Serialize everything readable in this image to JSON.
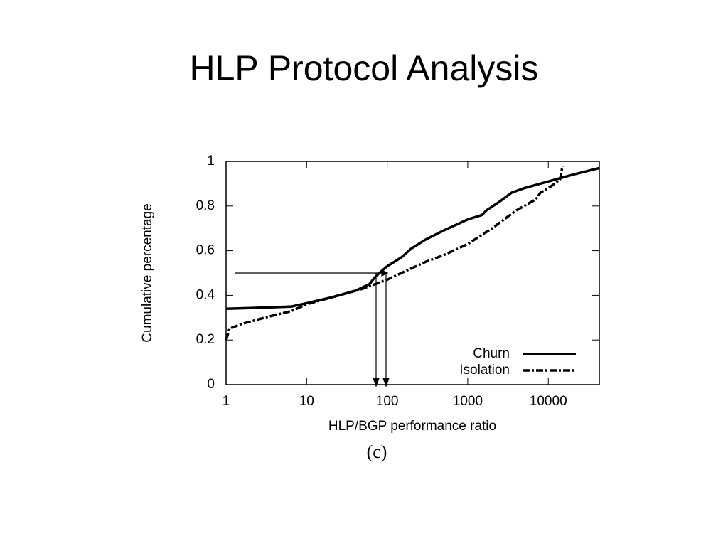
{
  "slide_title": "HLP Protocol Analysis",
  "chart_data": {
    "type": "line",
    "xlabel": "HLP/BGP performance ratio",
    "ylabel": "Cumulative percentage",
    "caption": "(c)",
    "xscale": "log",
    "xlim": [
      1,
      43000
    ],
    "xticks": [
      1,
      10,
      100,
      1000,
      10000
    ],
    "ylim": [
      0,
      1
    ],
    "yticks": [
      0,
      0.2,
      0.4,
      0.6,
      0.8,
      1
    ],
    "legend": "lower right",
    "series": [
      {
        "name": "Churn",
        "color": "#000000",
        "dash": "solid",
        "x": [
          1,
          2,
          6.5,
          10,
          20,
          40,
          60,
          70,
          80,
          100,
          150,
          200,
          300,
          500,
          1000,
          1500,
          1700,
          2500,
          3500,
          5000,
          10000,
          20000,
          43000
        ],
        "values": [
          0.34,
          0.343,
          0.35,
          0.365,
          0.39,
          0.42,
          0.45,
          0.48,
          0.5,
          0.53,
          0.57,
          0.61,
          0.65,
          0.69,
          0.74,
          0.76,
          0.78,
          0.82,
          0.86,
          0.88,
          0.91,
          0.94,
          0.97
        ]
      },
      {
        "name": "Isolation",
        "color": "#000000",
        "dash": "dashdot",
        "x": [
          1,
          1.1,
          1.5,
          3,
          6.5,
          10,
          20,
          50,
          100,
          150,
          300,
          500,
          1000,
          2000,
          4000,
          7000,
          8000,
          10000,
          12000,
          14000,
          15000
        ],
        "values": [
          0.2,
          0.25,
          0.27,
          0.3,
          0.33,
          0.36,
          0.39,
          0.43,
          0.47,
          0.5,
          0.55,
          0.58,
          0.63,
          0.7,
          0.78,
          0.83,
          0.86,
          0.88,
          0.9,
          0.92,
          0.98
        ]
      }
    ]
  }
}
